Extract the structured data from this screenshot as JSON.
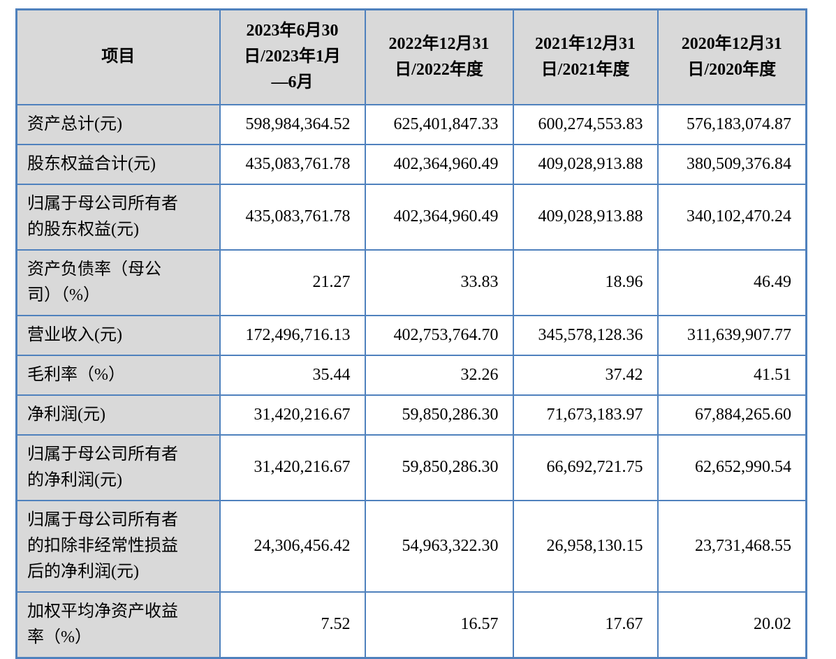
{
  "table": {
    "colors": {
      "border": "#4f81bd",
      "header_bg": "#d9d9d9",
      "label_bg": "#d9d9d9",
      "value_bg": "#ffffff",
      "text": "#000000"
    },
    "columns": [
      "项目",
      "2023年6月30\n日/2023年1月\n—6月",
      "2022年12月31\n日/2022年度",
      "2021年12月31\n日/2021年度",
      "2020年12月31\n日/2020年度"
    ],
    "rows": [
      {
        "label": "资产总计(元)",
        "values": [
          "598,984,364.52",
          "625,401,847.33",
          "600,274,553.83",
          "576,183,074.87"
        ]
      },
      {
        "label": "股东权益合计(元)",
        "values": [
          "435,083,761.78",
          "402,364,960.49",
          "409,028,913.88",
          "380,509,376.84"
        ]
      },
      {
        "label": "归属于母公司所有者\n的股东权益(元)",
        "values": [
          "435,083,761.78",
          "402,364,960.49",
          "409,028,913.88",
          "340,102,470.24"
        ]
      },
      {
        "label": "资产负债率（母公\n司）（%）",
        "values": [
          "21.27",
          "33.83",
          "18.96",
          "46.49"
        ]
      },
      {
        "label": "营业收入(元)",
        "values": [
          "172,496,716.13",
          "402,753,764.70",
          "345,578,128.36",
          "311,639,907.77"
        ]
      },
      {
        "label": "毛利率（%）",
        "values": [
          "35.44",
          "32.26",
          "37.42",
          "41.51"
        ]
      },
      {
        "label": "净利润(元)",
        "values": [
          "31,420,216.67",
          "59,850,286.30",
          "71,673,183.97",
          "67,884,265.60"
        ]
      },
      {
        "label": "归属于母公司所有者\n的净利润(元)",
        "values": [
          "31,420,216.67",
          "59,850,286.30",
          "66,692,721.75",
          "62,652,990.54"
        ]
      },
      {
        "label": "归属于母公司所有者\n的扣除非经常性损益\n后的净利润(元)",
        "values": [
          "24,306,456.42",
          "54,963,322.30",
          "26,958,130.15",
          "23,731,468.55"
        ]
      },
      {
        "label": "加权平均净资产收益\n率（%）",
        "values": [
          "7.52",
          "16.57",
          "17.67",
          "20.02"
        ]
      }
    ]
  }
}
